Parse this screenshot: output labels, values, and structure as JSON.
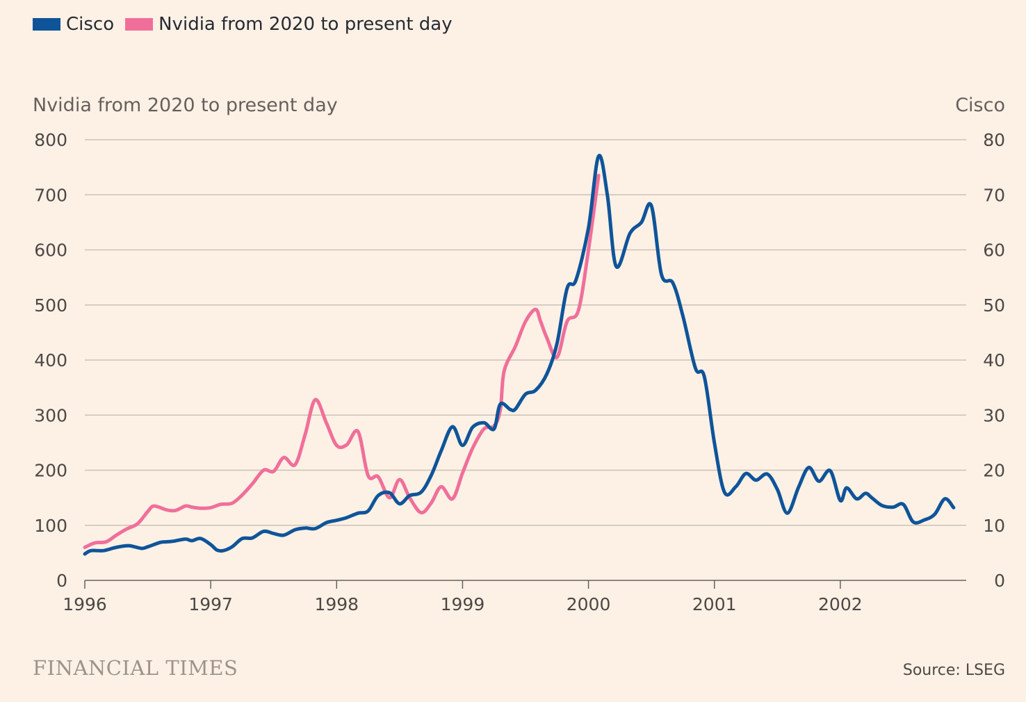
{
  "chart_data": {
    "type": "line",
    "legend_position": "top-left",
    "grid": true,
    "left_axis": {
      "title": "Nvidia from 2020 to present day",
      "ylim": [
        0,
        800
      ],
      "ticks": [
        0,
        100,
        200,
        300,
        400,
        500,
        600,
        700,
        800
      ]
    },
    "right_axis": {
      "title": "Cisco",
      "ylim": [
        0,
        80
      ],
      "ticks": [
        0,
        10,
        20,
        30,
        40,
        50,
        60,
        70,
        80
      ]
    },
    "x_axis": {
      "xlim": [
        1996,
        2003
      ],
      "ticks": [
        1996,
        1997,
        1998,
        1999,
        2000,
        2001,
        2002
      ]
    },
    "series": [
      {
        "name": "Cisco",
        "axis": "right",
        "color": "#0f5499",
        "x": [
          1996.0,
          1996.05,
          1996.15,
          1996.25,
          1996.35,
          1996.45,
          1996.5,
          1996.6,
          1996.65,
          1996.7,
          1996.8,
          1996.85,
          1996.92,
          1997.0,
          1997.05,
          1997.1,
          1997.17,
          1997.25,
          1997.33,
          1997.42,
          1997.5,
          1997.58,
          1997.67,
          1997.75,
          1997.83,
          1997.92,
          1998.0,
          1998.08,
          1998.17,
          1998.25,
          1998.33,
          1998.42,
          1998.5,
          1998.58,
          1998.67,
          1998.75,
          1998.83,
          1998.92,
          1999.0,
          1999.08,
          1999.17,
          1999.25,
          1999.3,
          1999.38,
          1999.42,
          1999.5,
          1999.58,
          1999.67,
          1999.75,
          1999.83,
          1999.9,
          2000.0,
          2000.08,
          2000.15,
          2000.22,
          2000.33,
          2000.42,
          2000.5,
          2000.58,
          2000.67,
          2000.75,
          2000.85,
          2000.92,
          2001.0,
          2001.08,
          2001.17,
          2001.25,
          2001.33,
          2001.42,
          2001.5,
          2001.58,
          2001.67,
          2001.75,
          2001.83,
          2001.92,
          2002.0,
          2002.05,
          2002.13,
          2002.2,
          2002.25,
          2002.33,
          2002.42,
          2002.5,
          2002.58,
          2002.67,
          2002.75,
          2002.83,
          2002.9
        ],
        "values": [
          4.8,
          5.4,
          5.4,
          6.0,
          6.3,
          5.8,
          6.1,
          6.9,
          7.0,
          7.1,
          7.5,
          7.2,
          7.6,
          6.5,
          5.5,
          5.4,
          6.1,
          7.6,
          7.7,
          8.9,
          8.5,
          8.2,
          9.2,
          9.5,
          9.4,
          10.5,
          10.9,
          11.4,
          12.2,
          12.6,
          15.4,
          15.9,
          13.9,
          15.4,
          16.0,
          19.0,
          23.5,
          27.9,
          24.5,
          27.8,
          28.6,
          27.5,
          32.0,
          31.0,
          31.1,
          33.8,
          34.5,
          37.5,
          43.0,
          53.0,
          54.5,
          64.0,
          77.0,
          70.0,
          57.0,
          63.0,
          65.0,
          68.0,
          55.5,
          54.0,
          48.0,
          38.5,
          37.0,
          25.0,
          16.0,
          17.0,
          19.4,
          18.2,
          19.3,
          16.5,
          12.2,
          17.0,
          20.5,
          18.0,
          19.9,
          14.5,
          16.8,
          14.8,
          15.8,
          15.0,
          13.6,
          13.3,
          13.8,
          10.6,
          11.0,
          12.0,
          14.8,
          13.2
        ]
      },
      {
        "name": "Nvidia from 2020 to present day",
        "axis": "left",
        "color": "#f06f9a",
        "x": [
          1996.0,
          1996.08,
          1996.17,
          1996.25,
          1996.33,
          1996.42,
          1996.5,
          1996.55,
          1996.65,
          1996.72,
          1996.8,
          1996.85,
          1996.92,
          1997.0,
          1997.08,
          1997.17,
          1997.25,
          1997.33,
          1997.42,
          1997.5,
          1997.58,
          1997.67,
          1997.75,
          1997.83,
          1997.92,
          1998.0,
          1998.08,
          1998.17,
          1998.25,
          1998.33,
          1998.42,
          1998.5,
          1998.58,
          1998.67,
          1998.75,
          1998.83,
          1998.92,
          1999.0,
          1999.08,
          1999.17,
          1999.25,
          1999.3,
          1999.33,
          1999.42,
          1999.5,
          1999.58,
          1999.62,
          1999.67,
          1999.75,
          1999.83,
          1999.92,
          2000.0,
          2000.08
        ],
        "values": [
          60,
          68,
          70,
          82,
          93,
          103,
          125,
          135,
          128,
          127,
          135,
          133,
          131,
          132,
          138,
          140,
          155,
          175,
          200,
          198,
          223,
          210,
          265,
          328,
          285,
          245,
          246,
          270,
          190,
          188,
          150,
          183,
          150,
          123,
          140,
          170,
          148,
          195,
          240,
          275,
          280,
          310,
          380,
          425,
          470,
          492,
          470,
          440,
          405,
          470,
          490,
          600,
          735
        ]
      }
    ]
  },
  "source": "Source: LSEG",
  "brand": "FINANCIAL TIMES"
}
